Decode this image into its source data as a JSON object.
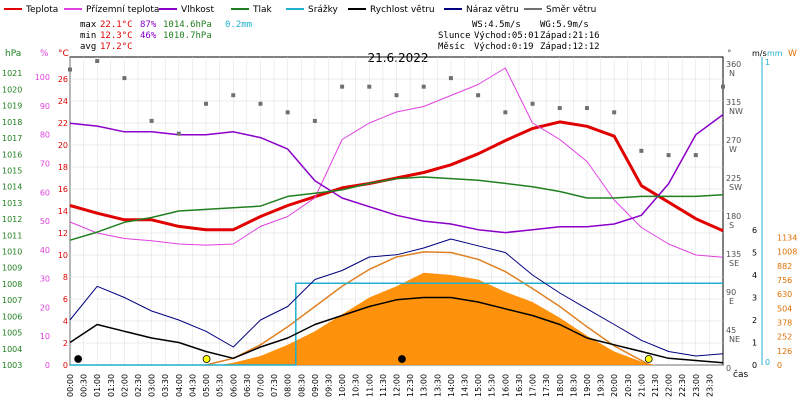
{
  "chart_data": {
    "type": "line",
    "title": "21.6.2022",
    "legend": [
      {
        "name": "Teplota",
        "color": "#e00000"
      },
      {
        "name": "Přízemní teplota",
        "color": "#e040e0"
      },
      {
        "name": "Vlhkost",
        "color": "#8a00c8"
      },
      {
        "name": "Tlak",
        "color": "#208020"
      },
      {
        "name": "Srážky",
        "color": "#20b0d0"
      },
      {
        "name": "Rychlost větru",
        "color": "#000000"
      },
      {
        "name": "Náraz větru",
        "color": "#000080"
      },
      {
        "name": "Směr větru",
        "color": "#707070"
      }
    ],
    "stats": {
      "max": {
        "label": "max",
        "temp": "22.1°C",
        "hum": "87%",
        "press": "1014.6hPa",
        "rain": "0.2mm"
      },
      "min": {
        "label": "min",
        "temp": "12.3°C",
        "hum": "46%",
        "press": "1010.7hPa"
      },
      "avg": {
        "label": "avg",
        "temp": "17.2°C"
      }
    },
    "wind_info": {
      "ws": "WS:4.5m/s",
      "wg": "WG:5.9m/s"
    },
    "sun": {
      "label": "Slunce",
      "rise": "Východ:05:01",
      "set": "Západ:21:16"
    },
    "moon": {
      "label": "Měsíc",
      "rise": "Východ:0:19",
      "set": "Západ:12:12"
    },
    "axes": {
      "hpa": {
        "unit": "hPa",
        "range": [
          1003,
          1022
        ],
        "ticks": [
          "1003",
          "1004",
          "1005",
          "1006",
          "1007",
          "1008",
          "1009",
          "1010",
          "1011",
          "1012",
          "1013",
          "1014",
          "1015",
          "1016",
          "1017",
          "1018",
          "1019",
          "1020",
          "1021"
        ]
      },
      "pct": {
        "unit": "%",
        "range": [
          0,
          107
        ],
        "ticks": [
          "0",
          "10",
          "20",
          "30",
          "40",
          "50",
          "60",
          "70",
          "80",
          "90",
          "100"
        ]
      },
      "temp": {
        "unit": "°C",
        "range": [
          0,
          28
        ],
        "ticks": [
          "0",
          "2",
          "4",
          "6",
          "8",
          "10",
          "12",
          "14",
          "16",
          "18",
          "20",
          "22",
          "24",
          "26"
        ]
      },
      "dir": {
        "unit": "°",
        "ticks": [
          {
            "deg": "360",
            "dir": "N"
          },
          {
            "deg": "315",
            "dir": "NW"
          },
          {
            "deg": "270",
            "dir": "W"
          },
          {
            "deg": "225",
            "dir": "SW"
          },
          {
            "deg": "180",
            "dir": "S"
          },
          {
            "deg": "135",
            "dir": "SE"
          },
          {
            "deg": "90",
            "dir": "E"
          },
          {
            "deg": "45",
            "dir": "NE"
          },
          {
            "deg": "0",
            "dir": ""
          }
        ]
      },
      "ms": {
        "unit": "m/s",
        "ticks": [
          "0",
          "1",
          "2",
          "3",
          "4",
          "5",
          "6"
        ]
      },
      "mm": {
        "unit": "mm",
        "ticks": [
          "0",
          "1"
        ]
      },
      "w": {
        "unit": "W",
        "range": [
          0,
          1200
        ],
        "ticks": [
          "0",
          "126",
          "252",
          "378",
          "504",
          "630",
          "756",
          "882",
          "1008",
          "1134"
        ]
      },
      "time": {
        "label": "čas",
        "ticks": [
          "00:00",
          "00:30",
          "01:00",
          "01:30",
          "02:00",
          "02:30",
          "03:00",
          "03:30",
          "04:00",
          "04:30",
          "05:00",
          "05:30",
          "06:00",
          "06:30",
          "07:00",
          "07:30",
          "08:00",
          "08:30",
          "09:00",
          "09:30",
          "10:00",
          "10:30",
          "11:00",
          "11:30",
          "12:00",
          "12:30",
          "13:00",
          "13:30",
          "14:00",
          "14:30",
          "15:00",
          "15:30",
          "16:00",
          "16:30",
          "17:00",
          "17:30",
          "18:00",
          "18:30",
          "19:00",
          "19:30",
          "20:00",
          "20:30",
          "21:00",
          "21:30",
          "22:00",
          "22:30",
          "23:00",
          "23:30"
        ]
      }
    },
    "series": [
      {
        "name": "Teplota",
        "unit": "°C",
        "x_hours": [
          0,
          1,
          2,
          3,
          4,
          5,
          6,
          7,
          8,
          9,
          10,
          11,
          12,
          13,
          14,
          15,
          16,
          17,
          18,
          19,
          20,
          21,
          22,
          23,
          24
        ],
        "values": [
          14.5,
          13.8,
          13.2,
          13.2,
          12.6,
          12.3,
          12.3,
          13.5,
          14.5,
          15.3,
          16.1,
          16.5,
          17.0,
          17.5,
          18.2,
          19.2,
          20.4,
          21.5,
          22.1,
          21.7,
          20.8,
          16.3,
          14.8,
          13.3,
          12.2
        ]
      },
      {
        "name": "Přízemní teplota",
        "unit": "°C",
        "x_hours": [
          0,
          1,
          2,
          3,
          4,
          5,
          6,
          7,
          8,
          9,
          10,
          11,
          12,
          13,
          14,
          15,
          16,
          17,
          18,
          19,
          20,
          21,
          22,
          23,
          24
        ],
        "values": [
          13.0,
          12.0,
          11.5,
          11.3,
          11.0,
          10.9,
          11.0,
          12.6,
          13.5,
          15.2,
          20.5,
          22.0,
          23.0,
          23.5,
          24.5,
          25.5,
          27.0,
          22.0,
          20.5,
          18.5,
          15.0,
          12.5,
          11.0,
          10.0,
          9.8
        ]
      },
      {
        "name": "Vlhkost",
        "unit": "%",
        "x_hours": [
          0,
          1,
          2,
          3,
          4,
          5,
          6,
          7,
          8,
          9,
          10,
          11,
          12,
          13,
          14,
          15,
          16,
          17,
          18,
          19,
          20,
          21,
          22,
          23,
          24
        ],
        "values": [
          84,
          83,
          81,
          81,
          80,
          80,
          81,
          79,
          75,
          64,
          58,
          55,
          52,
          50,
          49,
          47,
          46,
          47,
          48,
          48,
          49,
          52,
          63,
          80,
          87
        ]
      },
      {
        "name": "Tlak",
        "unit": "hPa",
        "x_hours": [
          0,
          1,
          2,
          3,
          4,
          5,
          6,
          7,
          8,
          9,
          10,
          11,
          12,
          13,
          14,
          15,
          16,
          17,
          18,
          19,
          20,
          21,
          22,
          23,
          24
        ],
        "values": [
          1010.7,
          1011.2,
          1011.8,
          1012.1,
          1012.5,
          1012.6,
          1012.7,
          1012.8,
          1013.4,
          1013.6,
          1013.8,
          1014.2,
          1014.5,
          1014.6,
          1014.5,
          1014.4,
          1014.2,
          1014.0,
          1013.7,
          1013.3,
          1013.3,
          1013.4,
          1013.4,
          1013.4,
          1013.5
        ]
      },
      {
        "name": "Srážky",
        "unit": "mm",
        "x_hours": [
          0,
          8.3,
          8.3,
          12.5,
          24
        ],
        "values": [
          0,
          0,
          0.2,
          0.2,
          0.2
        ]
      },
      {
        "name": "Rychlost větru",
        "unit": "m/s",
        "x_hours": [
          0,
          1,
          2,
          3,
          4,
          5,
          6,
          7,
          8,
          9,
          10,
          11,
          12,
          13,
          14,
          15,
          16,
          17,
          18,
          19,
          20,
          21,
          22,
          23,
          24
        ],
        "values": [
          1.0,
          1.8,
          1.5,
          1.2,
          1.0,
          0.6,
          0.3,
          0.8,
          1.2,
          1.8,
          2.2,
          2.6,
          2.9,
          3.0,
          3.0,
          2.8,
          2.5,
          2.2,
          1.8,
          1.2,
          0.9,
          0.6,
          0.3,
          0.2,
          0.1
        ]
      },
      {
        "name": "Náraz větru",
        "unit": "m/s",
        "x_hours": [
          0,
          1,
          2,
          3,
          4,
          5,
          6,
          7,
          8,
          9,
          10,
          11,
          12,
          13,
          14,
          15,
          16,
          17,
          18,
          19,
          20,
          21,
          22,
          23,
          24
        ],
        "values": [
          2.0,
          3.5,
          3.0,
          2.4,
          2.0,
          1.5,
          0.8,
          2.0,
          2.6,
          3.8,
          4.2,
          4.8,
          4.9,
          5.2,
          5.6,
          5.3,
          5.0,
          4.0,
          3.2,
          2.5,
          1.8,
          1.1,
          0.6,
          0.4,
          0.5
        ]
      },
      {
        "name": "Směr větru",
        "unit": "°",
        "x_hours": [
          0,
          1,
          2,
          3,
          4,
          5,
          6,
          7,
          8,
          9,
          10,
          11,
          12,
          13,
          14,
          15,
          16,
          17,
          18,
          19,
          20,
          21,
          22,
          23,
          24
        ],
        "values": [
          350,
          360,
          340,
          290,
          275,
          310,
          320,
          310,
          300,
          290,
          330,
          330,
          320,
          330,
          340,
          320,
          300,
          310,
          305,
          305,
          300,
          255,
          250,
          250,
          330
        ]
      },
      {
        "name": "Solar",
        "unit": "W",
        "x_hours": [
          5.5,
          6,
          7,
          8,
          9,
          10,
          11,
          12,
          13,
          14,
          15,
          16,
          17,
          18,
          19,
          20,
          21,
          21.5
        ],
        "values": [
          0,
          20,
          80,
          180,
          300,
          450,
          600,
          700,
          820,
          800,
          760,
          650,
          560,
          420,
          260,
          120,
          30,
          0
        ]
      },
      {
        "name": "Theoretical solar",
        "unit": "W",
        "x_hours": [
          5.0,
          6,
          7,
          8,
          9,
          10,
          11,
          12,
          13,
          14,
          15,
          16,
          17,
          18,
          19,
          20,
          21,
          21.3
        ],
        "values": [
          0,
          60,
          180,
          340,
          520,
          700,
          850,
          960,
          1005,
          1000,
          940,
          830,
          680,
          520,
          340,
          170,
          40,
          0
        ]
      }
    ]
  }
}
